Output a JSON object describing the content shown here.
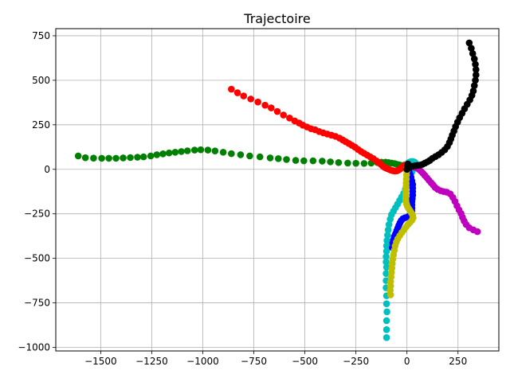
{
  "chart_data": {
    "type": "scatter",
    "title": "Trajectoire",
    "xlabel": "",
    "ylabel": "",
    "xlim": [
      -1720,
      450
    ],
    "ylim": [
      -1020,
      790
    ],
    "grid": true,
    "xticks": [
      -1500,
      -1250,
      -1000,
      -750,
      -500,
      -250,
      0,
      250
    ],
    "yticks": [
      -1000,
      -750,
      -500,
      -250,
      0,
      250,
      500,
      750
    ],
    "series": [
      {
        "color": "#008000",
        "points": [
          [
            -1610,
            75
          ],
          [
            -1575,
            65
          ],
          [
            -1535,
            63
          ],
          [
            -1495,
            62
          ],
          [
            -1460,
            62
          ],
          [
            -1425,
            62
          ],
          [
            -1390,
            64
          ],
          [
            -1355,
            66
          ],
          [
            -1320,
            68
          ],
          [
            -1290,
            70
          ],
          [
            -1255,
            75
          ],
          [
            -1225,
            82
          ],
          [
            -1195,
            87
          ],
          [
            -1165,
            92
          ],
          [
            -1135,
            96
          ],
          [
            -1105,
            100
          ],
          [
            -1075,
            104
          ],
          [
            -1040,
            108
          ],
          [
            -1010,
            110
          ],
          [
            -975,
            108
          ],
          [
            -940,
            103
          ],
          [
            -900,
            96
          ],
          [
            -860,
            88
          ],
          [
            -815,
            82
          ],
          [
            -770,
            75
          ],
          [
            -720,
            70
          ],
          [
            -670,
            64
          ],
          [
            -630,
            60
          ],
          [
            -590,
            55
          ],
          [
            -545,
            50
          ],
          [
            -505,
            48
          ],
          [
            -460,
            48
          ],
          [
            -415,
            46
          ],
          [
            -375,
            42
          ],
          [
            -335,
            38
          ],
          [
            -290,
            35
          ],
          [
            -250,
            34
          ],
          [
            -210,
            33
          ],
          [
            -175,
            35
          ],
          [
            -145,
            38
          ],
          [
            -125,
            40
          ],
          [
            -105,
            40
          ],
          [
            -90,
            38
          ],
          [
            -75,
            35
          ],
          [
            -60,
            32
          ],
          [
            -48,
            28
          ],
          [
            -38,
            25
          ],
          [
            -28,
            22
          ],
          [
            -18,
            18
          ],
          [
            -10,
            15
          ]
        ]
      },
      {
        "color": "#ff0000",
        "points": [
          [
            -860,
            450
          ],
          [
            -830,
            430
          ],
          [
            -800,
            412
          ],
          [
            -765,
            395
          ],
          [
            -730,
            378
          ],
          [
            -695,
            360
          ],
          [
            -665,
            345
          ],
          [
            -635,
            325
          ],
          [
            -605,
            305
          ],
          [
            -575,
            288
          ],
          [
            -550,
            272
          ],
          [
            -528,
            260
          ],
          [
            -510,
            248
          ],
          [
            -490,
            238
          ],
          [
            -470,
            228
          ],
          [
            -450,
            222
          ],
          [
            -430,
            212
          ],
          [
            -410,
            205
          ],
          [
            -390,
            198
          ],
          [
            -370,
            192
          ],
          [
            -350,
            185
          ],
          [
            -330,
            175
          ],
          [
            -315,
            165
          ],
          [
            -300,
            155
          ],
          [
            -285,
            145
          ],
          [
            -270,
            135
          ],
          [
            -255,
            125
          ],
          [
            -240,
            112
          ],
          [
            -225,
            100
          ],
          [
            -210,
            90
          ],
          [
            -195,
            80
          ],
          [
            -180,
            70
          ],
          [
            -165,
            60
          ],
          [
            -150,
            48
          ],
          [
            -138,
            38
          ],
          [
            -128,
            28
          ],
          [
            -118,
            18
          ],
          [
            -108,
            10
          ],
          [
            -98,
            5
          ],
          [
            -88,
            0
          ],
          [
            -78,
            -5
          ],
          [
            -68,
            -8
          ],
          [
            -58,
            -10
          ],
          [
            -48,
            -8
          ],
          [
            -38,
            -2
          ],
          [
            -30,
            5
          ],
          [
            -20,
            15
          ],
          [
            -10,
            25
          ]
        ]
      },
      {
        "color": "#00bfbf",
        "points": [
          [
            -100,
            -945
          ],
          [
            -100,
            -900
          ],
          [
            -100,
            -850
          ],
          [
            -98,
            -800
          ],
          [
            -100,
            -755
          ],
          [
            -100,
            -710
          ],
          [
            -102,
            -665
          ],
          [
            -102,
            -625
          ],
          [
            -102,
            -585
          ],
          [
            -100,
            -550
          ],
          [
            -102,
            -520
          ],
          [
            -102,
            -490
          ],
          [
            -100,
            -460
          ],
          [
            -100,
            -430
          ],
          [
            -98,
            -400
          ],
          [
            -95,
            -370
          ],
          [
            -92,
            -340
          ],
          [
            -88,
            -310
          ],
          [
            -82,
            -280
          ],
          [
            -76,
            -255
          ],
          [
            -66,
            -235
          ],
          [
            -56,
            -215
          ],
          [
            -46,
            -195
          ],
          [
            -36,
            -175
          ],
          [
            -26,
            -155
          ],
          [
            -16,
            -135
          ],
          [
            -8,
            -112
          ],
          [
            -2,
            -90
          ],
          [
            5,
            -70
          ],
          [
            12,
            -50
          ],
          [
            18,
            -32
          ],
          [
            24,
            -15
          ],
          [
            30,
            0
          ],
          [
            35,
            12
          ],
          [
            40,
            22
          ],
          [
            42,
            30
          ],
          [
            40,
            38
          ],
          [
            35,
            42
          ],
          [
            28,
            44
          ],
          [
            20,
            44
          ],
          [
            12,
            40
          ],
          [
            5,
            35
          ]
        ]
      },
      {
        "color": "#0000ff",
        "points": [
          [
            -72,
            -440
          ],
          [
            -70,
            -415
          ],
          [
            -66,
            -395
          ],
          [
            -62,
            -378
          ],
          [
            -56,
            -362
          ],
          [
            -50,
            -345
          ],
          [
            -45,
            -330
          ],
          [
            -40,
            -315
          ],
          [
            -34,
            -300
          ],
          [
            -28,
            -288
          ],
          [
            -20,
            -278
          ],
          [
            -10,
            -272
          ],
          [
            2,
            -268
          ],
          [
            12,
            -262
          ],
          [
            20,
            -250
          ],
          [
            24,
            -235
          ],
          [
            24,
            -218
          ],
          [
            24,
            -200
          ],
          [
            24,
            -182
          ],
          [
            26,
            -165
          ],
          [
            28,
            -145
          ],
          [
            28,
            -125
          ],
          [
            28,
            -105
          ],
          [
            28,
            -85
          ],
          [
            24,
            -65
          ],
          [
            20,
            -45
          ],
          [
            15,
            -28
          ],
          [
            10,
            -12
          ],
          [
            5,
            -2
          ]
        ]
      },
      {
        "color": "#bfbf00",
        "points": [
          [
            -80,
            -705
          ],
          [
            -82,
            -680
          ],
          [
            -80,
            -655
          ],
          [
            -80,
            -630
          ],
          [
            -78,
            -605
          ],
          [
            -76,
            -580
          ],
          [
            -74,
            -555
          ],
          [
            -72,
            -530
          ],
          [
            -70,
            -505
          ],
          [
            -66,
            -480
          ],
          [
            -62,
            -455
          ],
          [
            -58,
            -430
          ],
          [
            -52,
            -408
          ],
          [
            -45,
            -390
          ],
          [
            -35,
            -372
          ],
          [
            -25,
            -355
          ],
          [
            -15,
            -340
          ],
          [
            -5,
            -325
          ],
          [
            5,
            -310
          ],
          [
            15,
            -298
          ],
          [
            25,
            -285
          ],
          [
            30,
            -272
          ],
          [
            28,
            -258
          ],
          [
            22,
            -245
          ],
          [
            15,
            -232
          ],
          [
            8,
            -220
          ],
          [
            2,
            -208
          ],
          [
            -2,
            -195
          ],
          [
            -5,
            -178
          ],
          [
            -6,
            -160
          ],
          [
            -6,
            -140
          ],
          [
            -6,
            -120
          ],
          [
            -5,
            -100
          ],
          [
            -4,
            -78
          ],
          [
            -3,
            -55
          ],
          [
            -2,
            -32
          ],
          [
            -1,
            -10
          ],
          [
            0,
            5
          ],
          [
            2,
            15
          ]
        ]
      },
      {
        "color": "#bf00bf",
        "points": [
          [
            345,
            -350
          ],
          [
            325,
            -340
          ],
          [
            305,
            -328
          ],
          [
            290,
            -310
          ],
          [
            280,
            -290
          ],
          [
            272,
            -270
          ],
          [
            265,
            -248
          ],
          [
            255,
            -228
          ],
          [
            245,
            -205
          ],
          [
            235,
            -180
          ],
          [
            225,
            -158
          ],
          [
            212,
            -138
          ],
          [
            195,
            -128
          ],
          [
            180,
            -125
          ],
          [
            165,
            -120
          ],
          [
            150,
            -112
          ],
          [
            138,
            -102
          ],
          [
            128,
            -88
          ],
          [
            118,
            -75
          ],
          [
            108,
            -62
          ],
          [
            98,
            -48
          ],
          [
            88,
            -35
          ],
          [
            78,
            -22
          ],
          [
            68,
            -10
          ],
          [
            58,
            0
          ],
          [
            48,
            8
          ],
          [
            38,
            12
          ],
          [
            28,
            14
          ]
        ]
      },
      {
        "color": "#000000",
        "points": [
          [
            305,
            710
          ],
          [
            315,
            680
          ],
          [
            322,
            650
          ],
          [
            330,
            620
          ],
          [
            335,
            590
          ],
          [
            338,
            560
          ],
          [
            338,
            530
          ],
          [
            335,
            500
          ],
          [
            330,
            470
          ],
          [
            325,
            440
          ],
          [
            318,
            415
          ],
          [
            308,
            390
          ],
          [
            295,
            365
          ],
          [
            282,
            340
          ],
          [
            270,
            315
          ],
          [
            258,
            290
          ],
          [
            248,
            265
          ],
          [
            238,
            240
          ],
          [
            230,
            215
          ],
          [
            222,
            192
          ],
          [
            215,
            170
          ],
          [
            208,
            150
          ],
          [
            198,
            128
          ],
          [
            185,
            110
          ],
          [
            170,
            95
          ],
          [
            155,
            82
          ],
          [
            140,
            72
          ],
          [
            125,
            62
          ],
          [
            112,
            50
          ],
          [
            100,
            42
          ],
          [
            88,
            35
          ],
          [
            76,
            28
          ],
          [
            64,
            24
          ],
          [
            52,
            22
          ],
          [
            40,
            20
          ],
          [
            28,
            18
          ],
          [
            18,
            15
          ],
          [
            10,
            12
          ],
          [
            4,
            8
          ],
          [
            0,
            0
          ],
          [
            2,
            20
          ],
          [
            5,
            30
          ]
        ]
      }
    ]
  }
}
